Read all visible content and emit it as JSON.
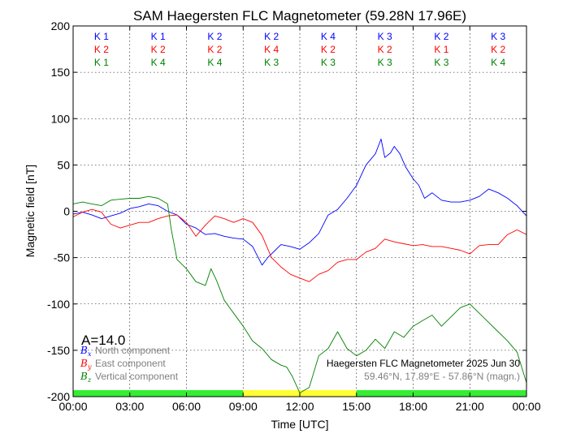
{
  "chart_data": {
    "type": "line",
    "title": "SAM Haegersten FLC Magnetometer (59.28N 17.96E)",
    "xlabel": "Time [UTC]",
    "ylabel": "Magnetic field [nT]",
    "xlim": [
      0,
      24
    ],
    "ylim": [
      -200,
      200
    ],
    "x_ticks": [
      "00:00",
      "03:00",
      "06:00",
      "09:00",
      "12:00",
      "15:00",
      "18:00",
      "21:00",
      "00:00"
    ],
    "y_ticks": [
      200,
      150,
      100,
      50,
      0,
      -50,
      -100,
      -150,
      -200
    ],
    "grid": true,
    "k_indices": {
      "north": [
        "K 1",
        "K 1",
        "K 2",
        "K 2",
        "K 4",
        "K 3",
        "K 2",
        "K 3"
      ],
      "east": [
        "K 2",
        "K 2",
        "K 2",
        "K 4",
        "K 2",
        "K 2",
        "K 1",
        "K 2"
      ],
      "vertical": [
        "K 1",
        "K 4",
        "K 4",
        "K 3",
        "K 3",
        "K 3",
        "K 3",
        "K 4"
      ]
    },
    "activity_bar": [
      {
        "from": 0,
        "to": 9,
        "color": "#33ee33"
      },
      {
        "from": 9,
        "to": 15,
        "color": "#ffff33"
      },
      {
        "from": 15,
        "to": 24,
        "color": "#33ee33"
      }
    ],
    "a_index": "A=14.0",
    "annotation_title": "Haegersten FLC Magnetometer 2025 Jun 30",
    "annotation_coords": "59.46°N, 17.89°E - 57.86°N (magn.)",
    "series": [
      {
        "name": "North component",
        "symbol": "B",
        "subscript": "x",
        "color": "#0000ff",
        "x": [
          0,
          0.5,
          1,
          1.5,
          2,
          2.5,
          3,
          3.5,
          4,
          4.5,
          5,
          5.5,
          6,
          6.5,
          7,
          7.5,
          8,
          8.5,
          9,
          9.5,
          10,
          10.3,
          10.7,
          11,
          11.5,
          12,
          12.5,
          13,
          13.5,
          14,
          14.5,
          15,
          15.5,
          16,
          16.3,
          16.5,
          16.8,
          17,
          17.3,
          17.6,
          18,
          18.3,
          18.6,
          19,
          19.5,
          20,
          20.5,
          21,
          21.5,
          22,
          22.5,
          23,
          23.5,
          24
        ],
        "y": [
          -3,
          -1,
          -4,
          -8,
          -5,
          -2,
          3,
          5,
          8,
          6,
          0,
          -4,
          -14,
          -18,
          -25,
          -24,
          -27,
          -29,
          -30,
          -38,
          -58,
          -50,
          -42,
          -36,
          -38,
          -41,
          -34,
          -24,
          -4,
          2,
          14,
          28,
          50,
          62,
          78,
          58,
          63,
          70,
          62,
          48,
          35,
          28,
          14,
          20,
          12,
          10,
          10,
          12,
          16,
          24,
          20,
          14,
          6,
          -5
        ]
      },
      {
        "name": "East component",
        "symbol": "B",
        "subscript": "y",
        "color": "#ff0000",
        "x": [
          0,
          0.5,
          1,
          1.5,
          2,
          2.5,
          3,
          3.5,
          4,
          4.5,
          5,
          5.5,
          6,
          6.5,
          7,
          7.5,
          8,
          8.5,
          9,
          9.5,
          10,
          10.5,
          11,
          11.5,
          12,
          12.5,
          13,
          13.5,
          14,
          14.5,
          15,
          15.5,
          16,
          16.5,
          17,
          17.5,
          18,
          18.5,
          19,
          19.5,
          20,
          20.5,
          21,
          21.5,
          22,
          22.5,
          23,
          23.5,
          24
        ],
        "y": [
          -6,
          -1,
          2,
          -1,
          -14,
          -18,
          -15,
          -12,
          -12,
          -8,
          -5,
          -4,
          -12,
          -27,
          -15,
          -5,
          -8,
          -12,
          -8,
          -12,
          -26,
          -50,
          -60,
          -68,
          -72,
          -76,
          -68,
          -64,
          -55,
          -52,
          -52,
          -44,
          -40,
          -30,
          -33,
          -35,
          -37,
          -36,
          -38,
          -38,
          -40,
          -42,
          -46,
          -37,
          -36,
          -36,
          -25,
          -20,
          -25
        ]
      },
      {
        "name": "Vertical component",
        "symbol": "B",
        "subscript": "z",
        "color": "#008000",
        "x": [
          0,
          0.5,
          1,
          1.5,
          2,
          2.5,
          3,
          3.5,
          4,
          4.5,
          5,
          5.2,
          5.5,
          6,
          6.5,
          7,
          7.3,
          7.6,
          8,
          8.5,
          9,
          9.5,
          10,
          10.5,
          11,
          11.3,
          11.6,
          12,
          12.5,
          13,
          13.5,
          14,
          14.5,
          15,
          15.5,
          16,
          16.5,
          17,
          17.5,
          18,
          18.5,
          19,
          19.5,
          20,
          20.5,
          21,
          21.5,
          22,
          22.5,
          23,
          23.5,
          24
        ],
        "y": [
          8,
          10,
          8,
          6,
          12,
          13,
          14,
          14,
          16,
          14,
          8,
          -20,
          -52,
          -62,
          -76,
          -80,
          -62,
          -75,
          -96,
          -110,
          -124,
          -140,
          -148,
          -160,
          -166,
          -168,
          -178,
          -196,
          -190,
          -156,
          -148,
          -130,
          -148,
          -156,
          -150,
          -138,
          -148,
          -130,
          -136,
          -124,
          -118,
          -112,
          -124,
          -114,
          -104,
          -100,
          -110,
          -120,
          -130,
          -140,
          -152,
          -185
        ]
      }
    ]
  }
}
